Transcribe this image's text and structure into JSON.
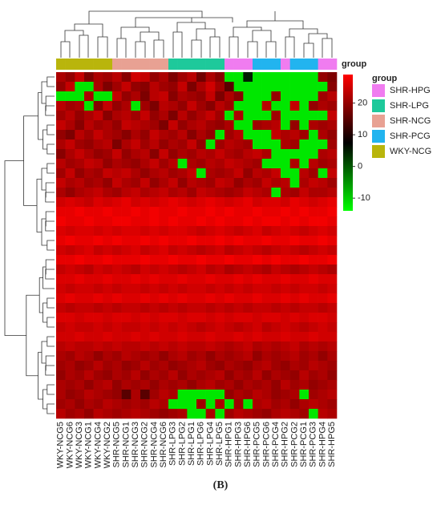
{
  "chart_data": {
    "type": "heatmap",
    "columns": [
      "WKY-NCG5",
      "WKY-NCG6",
      "WKY-NCG3",
      "WKY-NCG1",
      "WKY-NCG4",
      "WKY-NCG2",
      "SHR-NCG5",
      "SHR-NCG1",
      "SHR-NCG3",
      "SHR-NCG2",
      "SHR-NCG4",
      "SHR-NCG6",
      "SHR-LPG3",
      "SHR-LPG2",
      "SHR-LPG1",
      "SHR-LPG6",
      "SHR-LPG4",
      "SHR-LPG5",
      "SHR-HPG1",
      "SHR-HPG3",
      "SHR-HPG6",
      "SHR-PCG5",
      "SHR-PCG6",
      "SHR-PCG4",
      "SHR-HPG2",
      "SHR-PCG2",
      "SHR-PCG1",
      "SHR-PCG3",
      "SHR-HPG4",
      "SHR-HPG5"
    ],
    "column_groups": [
      "WKY-NCG",
      "WKY-NCG",
      "WKY-NCG",
      "WKY-NCG",
      "WKY-NCG",
      "WKY-NCG",
      "SHR-NCG",
      "SHR-NCG",
      "SHR-NCG",
      "SHR-NCG",
      "SHR-NCG",
      "SHR-NCG",
      "SHR-LPG",
      "SHR-LPG",
      "SHR-LPG",
      "SHR-LPG",
      "SHR-LPG",
      "SHR-LPG",
      "SHR-HPG",
      "SHR-HPG",
      "SHR-HPG",
      "SHR-PCG",
      "SHR-PCG",
      "SHR-PCG",
      "SHR-HPG",
      "SHR-PCG",
      "SHR-PCG",
      "SHR-PCG",
      "SHR-HPG",
      "SHR-HPG"
    ],
    "annotation_label": "group",
    "legend_title": "group",
    "groups": [
      {
        "name": "SHR-HPG",
        "color": "#f07cf0"
      },
      {
        "name": "SHR-LPG",
        "color": "#1ec99b"
      },
      {
        "name": "SHR-NCG",
        "color": "#e8a193"
      },
      {
        "name": "SHR-PCG",
        "color": "#22b4ef"
      },
      {
        "name": "WKY-NCG",
        "color": "#b9b50c"
      }
    ],
    "zlim": [
      -14,
      29
    ],
    "zticks": [
      20,
      10,
      0,
      -10
    ],
    "colors": [
      "#00ff00",
      "#000000",
      "#ff0000"
    ],
    "caption": "(B)",
    "values": [
      [
        22,
        20,
        24,
        18,
        22,
        21,
        23,
        19,
        25,
        24,
        20,
        22,
        18,
        21,
        23,
        17,
        22,
        19,
        -12,
        -12,
        5,
        -12,
        -12,
        -12,
        -12,
        -12,
        -12,
        -12,
        20,
        18
      ],
      [
        20,
        24,
        -12,
        -12,
        22,
        18,
        21,
        24,
        20,
        19,
        23,
        21,
        20,
        24,
        18,
        22,
        25,
        21,
        15,
        -12,
        -12,
        -12,
        -12,
        -12,
        -12,
        -12,
        -12,
        -12,
        -12,
        19
      ],
      [
        -12,
        -12,
        -12,
        22,
        -12,
        -12,
        24,
        20,
        22,
        18,
        23,
        24,
        19,
        22,
        21,
        20,
        24,
        18,
        22,
        19,
        -12,
        -12,
        -12,
        20,
        -12,
        -12,
        -12,
        -12,
        21,
        23
      ],
      [
        23,
        21,
        22,
        -12,
        19,
        24,
        20,
        22,
        -12,
        21,
        18,
        23,
        22,
        20,
        24,
        21,
        19,
        23,
        21,
        -12,
        -12,
        -12,
        23,
        -12,
        -12,
        24,
        -12,
        20,
        22,
        21
      ],
      [
        21,
        23,
        20,
        22,
        24,
        19,
        22,
        23,
        21,
        24,
        20,
        22,
        18,
        23,
        20,
        22,
        24,
        21,
        -12,
        22,
        -12,
        -12,
        -12,
        21,
        -12,
        -12,
        -12,
        -12,
        -12,
        24
      ],
      [
        24,
        22,
        19,
        23,
        21,
        22,
        20,
        24,
        23,
        22,
        21,
        18,
        24,
        20,
        22,
        23,
        21,
        20,
        22,
        -12,
        -12,
        21,
        22,
        23,
        -12,
        20,
        -12,
        22,
        21,
        22
      ],
      [
        20,
        18,
        23,
        21,
        24,
        22,
        21,
        19,
        22,
        20,
        24,
        22,
        21,
        23,
        19,
        22,
        20,
        -12,
        21,
        23,
        -12,
        -12,
        -12,
        24,
        22,
        23,
        21,
        -12,
        22,
        20
      ],
      [
        22,
        24,
        21,
        20,
        22,
        23,
        18,
        22,
        24,
        21,
        23,
        20,
        22,
        21,
        24,
        20,
        -12,
        21,
        23,
        22,
        21,
        -12,
        -12,
        -12,
        22,
        21,
        -12,
        -12,
        -12,
        21
      ],
      [
        19,
        22,
        24,
        22,
        20,
        21,
        24,
        20,
        22,
        23,
        19,
        24,
        20,
        22,
        21,
        23,
        22,
        24,
        22,
        21,
        23,
        24,
        22,
        -12,
        -12,
        -12,
        -12,
        -12,
        22,
        23
      ],
      [
        23,
        21,
        22,
        24,
        23,
        20,
        22,
        21,
        20,
        22,
        24,
        21,
        23,
        -12,
        22,
        21,
        23,
        22,
        24,
        23,
        22,
        21,
        -12,
        -12,
        -12,
        22,
        -12,
        23,
        21,
        22
      ],
      [
        21,
        24,
        20,
        22,
        21,
        24,
        23,
        24,
        22,
        20,
        22,
        23,
        21,
        22,
        24,
        -12,
        22,
        21,
        22,
        24,
        20,
        23,
        22,
        24,
        -12,
        -12,
        23,
        21,
        -12,
        24
      ],
      [
        24,
        22,
        23,
        21,
        22,
        20,
        24,
        22,
        21,
        24,
        20,
        22,
        24,
        20,
        23,
        22,
        21,
        24,
        23,
        20,
        22,
        21,
        24,
        22,
        23,
        -12,
        22,
        24,
        23,
        21
      ],
      [
        22,
        20,
        22,
        23,
        24,
        22,
        21,
        23,
        24,
        22,
        23,
        24,
        22,
        23,
        21,
        24,
        23,
        22,
        21,
        22,
        24,
        23,
        22,
        -12,
        22,
        21,
        24,
        22,
        22,
        23
      ],
      [
        25,
        26,
        25,
        24,
        26,
        25,
        26,
        27,
        25,
        26,
        25,
        26,
        27,
        26,
        25,
        26,
        27,
        26,
        25,
        26,
        27,
        25,
        26,
        26,
        25,
        27,
        26,
        25,
        26,
        27
      ],
      [
        27,
        27,
        28,
        27,
        27,
        28,
        27,
        27,
        28,
        27,
        28,
        27,
        27,
        28,
        27,
        27,
        28,
        27,
        28,
        27,
        27,
        28,
        27,
        27,
        28,
        27,
        28,
        27,
        27,
        28
      ],
      [
        28,
        27,
        27,
        28,
        27,
        27,
        28,
        28,
        27,
        27,
        28,
        27,
        28,
        27,
        27,
        28,
        27,
        28,
        27,
        27,
        28,
        27,
        28,
        28,
        27,
        28,
        27,
        28,
        28,
        27
      ],
      [
        26,
        25,
        26,
        26,
        25,
        26,
        25,
        26,
        26,
        25,
        26,
        25,
        26,
        26,
        25,
        24,
        25,
        26,
        25,
        24,
        25,
        26,
        24,
        25,
        26,
        25,
        24,
        25,
        26,
        25
      ],
      [
        27,
        28,
        27,
        27,
        28,
        27,
        28,
        27,
        27,
        28,
        27,
        28,
        27,
        27,
        28,
        27,
        27,
        28,
        27,
        28,
        27,
        27,
        28,
        27,
        27,
        28,
        27,
        27,
        28,
        27
      ],
      [
        25,
        24,
        25,
        26,
        24,
        25,
        24,
        25,
        26,
        24,
        25,
        26,
        24,
        25,
        24,
        23,
        24,
        25,
        23,
        24,
        25,
        24,
        23,
        24,
        25,
        24,
        23,
        24,
        25,
        24
      ],
      [
        27,
        27,
        28,
        27,
        27,
        28,
        27,
        27,
        27,
        28,
        27,
        27,
        28,
        27,
        27,
        28,
        27,
        27,
        28,
        27,
        27,
        28,
        27,
        28,
        27,
        27,
        28,
        27,
        27,
        28
      ],
      [
        24,
        25,
        24,
        23,
        25,
        24,
        25,
        24,
        23,
        25,
        24,
        25,
        24,
        23,
        24,
        25,
        23,
        24,
        22,
        23,
        24,
        23,
        22,
        24,
        23,
        22,
        23,
        24,
        23,
        22
      ],
      [
        26,
        26,
        27,
        26,
        26,
        27,
        26,
        26,
        27,
        26,
        27,
        26,
        26,
        27,
        26,
        26,
        27,
        26,
        26,
        27,
        26,
        27,
        26,
        26,
        27,
        26,
        26,
        27,
        26,
        26
      ],
      [
        25,
        24,
        25,
        25,
        24,
        25,
        24,
        25,
        25,
        24,
        25,
        24,
        25,
        24,
        25,
        25,
        24,
        25,
        24,
        25,
        24,
        25,
        25,
        24,
        25,
        24,
        25,
        25,
        24,
        25
      ],
      [
        26,
        27,
        26,
        26,
        27,
        26,
        27,
        26,
        26,
        27,
        26,
        27,
        26,
        27,
        26,
        26,
        27,
        26,
        27,
        26,
        26,
        27,
        26,
        26,
        27,
        26,
        27,
        26,
        26,
        27
      ],
      [
        24,
        23,
        24,
        24,
        23,
        24,
        23,
        24,
        24,
        23,
        24,
        23,
        24,
        23,
        24,
        24,
        23,
        24,
        23,
        24,
        23,
        24,
        24,
        23,
        24,
        23,
        24,
        24,
        23,
        24
      ],
      [
        26,
        26,
        25,
        26,
        26,
        25,
        26,
        26,
        25,
        26,
        25,
        26,
        26,
        25,
        26,
        26,
        25,
        26,
        25,
        26,
        26,
        25,
        26,
        26,
        25,
        26,
        25,
        26,
        26,
        25
      ],
      [
        24,
        25,
        24,
        24,
        25,
        24,
        25,
        24,
        24,
        25,
        24,
        25,
        24,
        25,
        24,
        23,
        24,
        25,
        24,
        23,
        24,
        25,
        23,
        24,
        25,
        24,
        23,
        24,
        25,
        24
      ],
      [
        25,
        25,
        26,
        25,
        25,
        26,
        25,
        25,
        26,
        25,
        26,
        25,
        25,
        26,
        25,
        25,
        26,
        25,
        25,
        26,
        25,
        26,
        25,
        25,
        26,
        25,
        25,
        26,
        25,
        25
      ],
      [
        23,
        24,
        23,
        23,
        24,
        23,
        24,
        23,
        23,
        24,
        23,
        24,
        23,
        24,
        23,
        23,
        24,
        23,
        22,
        23,
        24,
        22,
        23,
        22,
        23,
        24,
        22,
        23,
        22,
        23
      ],
      [
        22,
        21,
        23,
        22,
        20,
        22,
        21,
        23,
        22,
        21,
        22,
        20,
        22,
        23,
        21,
        22,
        20,
        22,
        21,
        22,
        23,
        20,
        22,
        21,
        22,
        23,
        21,
        22,
        20,
        22
      ],
      [
        21,
        22,
        20,
        21,
        23,
        21,
        22,
        20,
        21,
        23,
        21,
        22,
        20,
        21,
        22,
        23,
        21,
        20,
        22,
        21,
        20,
        22,
        23,
        21,
        20,
        22,
        21,
        23,
        22,
        21
      ],
      [
        20,
        22,
        21,
        23,
        21,
        20,
        22,
        21,
        23,
        20,
        22,
        21,
        23,
        20,
        22,
        21,
        22,
        23,
        20,
        22,
        21,
        23,
        20,
        22,
        21,
        20,
        23,
        21,
        22,
        20
      ],
      [
        22,
        21,
        22,
        20,
        22,
        23,
        20,
        22,
        21,
        22,
        20,
        22,
        21,
        22,
        20,
        22,
        23,
        21,
        22,
        20,
        22,
        21,
        22,
        20,
        23,
        21,
        22,
        20,
        21,
        22
      ],
      [
        22,
        20,
        21,
        23,
        22,
        21,
        20,
        15,
        22,
        15,
        21,
        23,
        22,
        -12,
        -12,
        -12,
        -12,
        -12,
        20,
        22,
        21,
        23,
        22,
        20,
        21,
        22,
        -12,
        21,
        22,
        23
      ],
      [
        21,
        22,
        20,
        22,
        21,
        23,
        22,
        21,
        22,
        21,
        23,
        22,
        -12,
        -12,
        -12,
        21,
        -12,
        22,
        -12,
        21,
        -12,
        22,
        23,
        21,
        22,
        20,
        22,
        23,
        22,
        21
      ],
      [
        23,
        21,
        22,
        20,
        23,
        22,
        21,
        22,
        23,
        22,
        21,
        20,
        21,
        22,
        -12,
        -12,
        22,
        -12,
        21,
        23,
        22,
        21,
        20,
        22,
        23,
        22,
        21,
        -12,
        23,
        22
      ]
    ]
  }
}
